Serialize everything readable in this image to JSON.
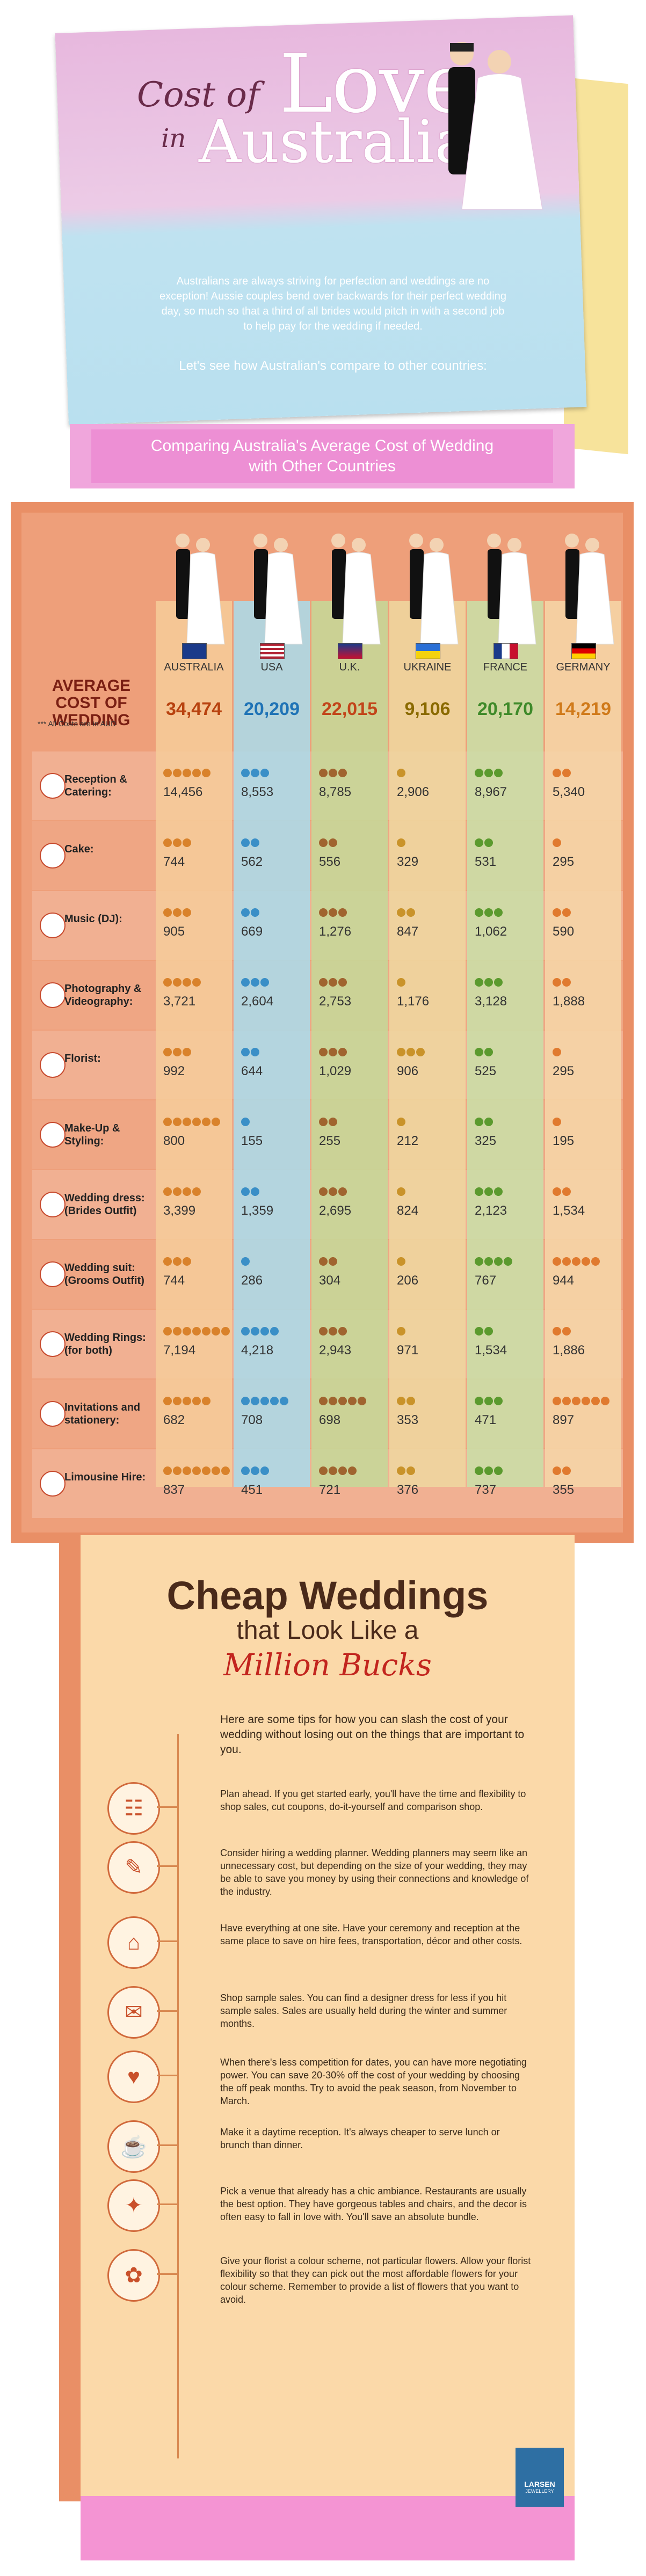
{
  "header": {
    "title_cost": "Cost of",
    "title_love": "Love",
    "title_in": "in",
    "title_australia": "Australia",
    "intro": "Australians are always striving for perfection and weddings are no exception! Aussie couples bend over backwards for their perfect wedding day, so much so that a third of all brides would pitch in with a second job to help pay for the wedding if needed.",
    "question": "Let's see how Australian's compare to other countries:"
  },
  "banner": {
    "line1": "Comparing Australia's Average Cost of Wedding",
    "line2": "with Other Countries"
  },
  "chart_data": {
    "type": "table",
    "average_label": "AVERAGE COST OF WEDDING",
    "note": "*** All Costs are in AUD",
    "countries": [
      "AUSTRALIA",
      "USA",
      "U.K.",
      "UKRAINE",
      "FRANCE",
      "GERMANY"
    ],
    "averages": [
      "34,474",
      "20,209",
      "22,015",
      "9,106",
      "20,170",
      "14,219"
    ],
    "average_colors": [
      "#b8420f",
      "#1f73b6",
      "#c2451a",
      "#8a6a00",
      "#3f8a2a",
      "#d07a1a"
    ],
    "column_colors": [
      "#f6cc9a",
      "#a9dcec",
      "#c4d999",
      "#efd8a0",
      "#c9e0a8",
      "#f6d7a8"
    ],
    "categories": [
      {
        "label": "Reception & Catering:",
        "icons": [
          5,
          3,
          3,
          1,
          3,
          2
        ],
        "values": [
          "14,456",
          "8,553",
          "8,785",
          "2,906",
          "8,967",
          "5,340"
        ]
      },
      {
        "label": "Cake:",
        "icons": [
          3,
          2,
          2,
          1,
          2,
          1
        ],
        "values": [
          "744",
          "562",
          "556",
          "329",
          "531",
          "295"
        ]
      },
      {
        "label": "Music (DJ):",
        "icons": [
          3,
          2,
          3,
          2,
          3,
          2
        ],
        "values": [
          "905",
          "669",
          "1,276",
          "847",
          "1,062",
          "590"
        ]
      },
      {
        "label": "Photography & Videography:",
        "icons": [
          4,
          3,
          3,
          1,
          3,
          2
        ],
        "values": [
          "3,721",
          "2,604",
          "2,753",
          "1,176",
          "3,128",
          "1,888"
        ]
      },
      {
        "label": "Florist:",
        "icons": [
          3,
          2,
          3,
          3,
          2,
          1
        ],
        "values": [
          "992",
          "644",
          "1,029",
          "906",
          "525",
          "295"
        ]
      },
      {
        "label": "Make-Up & Styling:",
        "icons": [
          6,
          1,
          2,
          1,
          2,
          1
        ],
        "values": [
          "800",
          "155",
          "255",
          "212",
          "325",
          "195"
        ]
      },
      {
        "label": "Wedding dress: (Brides Outfit)",
        "icons": [
          4,
          2,
          3,
          1,
          3,
          2
        ],
        "values": [
          "3,399",
          "1,359",
          "2,695",
          "824",
          "2,123",
          "1,534"
        ]
      },
      {
        "label": "Wedding suit: (Grooms Outfit)",
        "icons": [
          3,
          1,
          2,
          1,
          4,
          5
        ],
        "values": [
          "744",
          "286",
          "304",
          "206",
          "767",
          "944"
        ]
      },
      {
        "label": "Wedding Rings: (for both)",
        "icons": [
          7,
          4,
          3,
          1,
          2,
          2
        ],
        "values": [
          "7,194",
          "4,218",
          "2,943",
          "971",
          "1,534",
          "1,886"
        ]
      },
      {
        "label": "Invitations and stationery:",
        "icons": [
          5,
          5,
          5,
          2,
          3,
          6
        ],
        "values": [
          "682",
          "708",
          "698",
          "353",
          "471",
          "897"
        ]
      },
      {
        "label": "Limousine Hire:",
        "icons": [
          7,
          3,
          4,
          2,
          3,
          2
        ],
        "values": [
          "837",
          "451",
          "721",
          "376",
          "737",
          "355"
        ]
      }
    ]
  },
  "tips": {
    "heading1": "Cheap Weddings",
    "heading2": "that Look Like a",
    "heading3": "Million Bucks",
    "intro": "Here are some tips for how you can slash the cost of your wedding without losing out on the things that are important to you.",
    "items": [
      {
        "icon": "calendar-icon",
        "glyph": "☷",
        "text": "Plan ahead. If you get started early, you'll have the time and flexibility to shop sales, cut coupons, do-it-yourself and comparison shop."
      },
      {
        "icon": "planner-icon",
        "glyph": "✎",
        "text": "Consider hiring a wedding planner. Wedding planners may seem like an unnecessary cost, but depending on the size of your wedding, they may be able to save you money by using their connections and knowledge of the industry."
      },
      {
        "icon": "venue-icon",
        "glyph": "⌂",
        "text": "Have everything at one site. Have your ceremony and reception at the same place to save on hire fees, transportation, décor and other costs."
      },
      {
        "icon": "gift-icon",
        "glyph": "✉",
        "text": "Shop sample sales. You can find a designer dress for less if you hit sample sales. Sales are usually held during the winter and summer months."
      },
      {
        "icon": "date-icon",
        "glyph": "♥",
        "text": "When there's less competition for dates, you can have more negotiating power. You can save 20-30% off the cost of your wedding by choosing the off peak months. Try to avoid the peak season, from November to March."
      },
      {
        "icon": "food-icon",
        "glyph": "☕",
        "text": "Make it a daytime reception. It's always cheaper to serve lunch or brunch than dinner."
      },
      {
        "icon": "restaurant-icon",
        "glyph": "✦",
        "text": "Pick a venue that already has a chic ambiance. Restaurants are usually the best option. They have gorgeous tables and chairs, and the decor is often easy to fall in love with. You'll save an absolute bundle."
      },
      {
        "icon": "flower-icon",
        "glyph": "✿",
        "text": "Give your florist a colour scheme, not particular flowers. Allow your florist flexibility so that they can pick out the most affordable flowers for your colour scheme. Remember to provide a list of flowers that you want to avoid."
      }
    ]
  },
  "logo": {
    "name": "LARSEN",
    "sub": "JEWELLERY"
  }
}
